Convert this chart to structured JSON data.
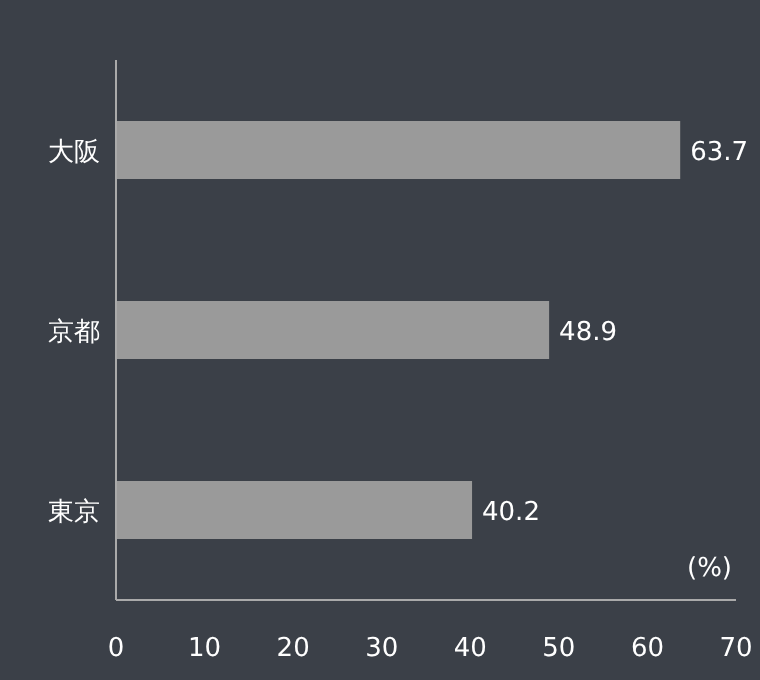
{
  "chart_data": {
    "type": "bar",
    "orientation": "horizontal",
    "categories": [
      "大阪",
      "京都",
      "東京"
    ],
    "values": [
      63.7,
      48.9,
      40.2
    ],
    "color": "#9a9a9a",
    "xlabel": "(%)",
    "xlim": [
      0,
      70
    ],
    "xticks": [
      0,
      10,
      20,
      30,
      40,
      50,
      60,
      70
    ],
    "data_labels": true
  }
}
